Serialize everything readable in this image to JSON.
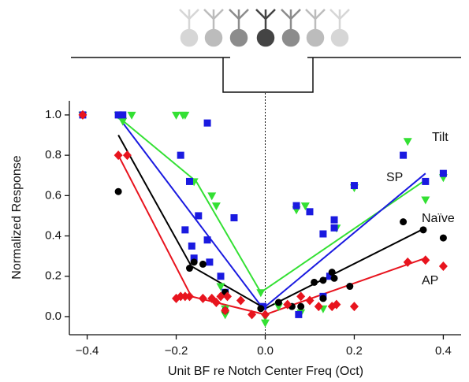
{
  "chart_data": {
    "type": "scatter",
    "xlabel": "Unit BF re Notch Center Freq (Oct)",
    "ylabel": "Normalized Response",
    "xlim": [
      -0.44,
      0.44
    ],
    "ylim": [
      -0.09,
      1.07
    ],
    "xticks": [
      {
        "value": -0.4,
        "label": "−0.4"
      },
      {
        "value": -0.2,
        "label": "−0.2"
      },
      {
        "value": 0,
        "label": "0.0"
      },
      {
        "value": 0.2,
        "label": "0.2"
      },
      {
        "value": 0.4,
        "label": "0.4"
      }
    ],
    "yticks": [
      {
        "value": 0,
        "label": "0.0"
      },
      0.2,
      0.4,
      0.6,
      0.8,
      {
        "value": 1,
        "label": "1.0"
      }
    ],
    "series": [
      {
        "name": "Tilt",
        "color": "#33e033",
        "marker": "triangle",
        "x": [
          -0.41,
          -0.33,
          -0.3,
          -0.32,
          -0.2,
          -0.185,
          -0.18,
          -0.16,
          -0.12,
          -0.11,
          -0.1,
          -0.09,
          -0.09,
          0.0,
          0.0,
          -0.01,
          0.03,
          0.07,
          0.08,
          0.09,
          0.13,
          0.16,
          0.2,
          0.32,
          0.36,
          0.4
        ],
        "y": [
          1.0,
          1.0,
          1.0,
          0.97,
          1.0,
          1.0,
          1.0,
          0.67,
          0.6,
          0.55,
          0.15,
          0.04,
          0.01,
          -0.03,
          0.0,
          0.12,
          0.05,
          0.53,
          0.02,
          0.55,
          0.04,
          0.44,
          0.64,
          0.87,
          0.58,
          0.69
        ],
        "line_x": [
          -0.33,
          -0.155,
          -0.01,
          0.355
        ],
        "line_y": [
          0.99,
          0.67,
          0.12,
          0.67
        ]
      },
      {
        "name": "SP",
        "color": "#1a1ae0",
        "marker": "square",
        "x": [
          -0.41,
          -0.33,
          -0.32,
          -0.19,
          -0.18,
          -0.17,
          -0.165,
          -0.16,
          -0.15,
          -0.13,
          -0.125,
          -0.1,
          -0.09,
          -0.07,
          -0.13,
          -0.005,
          0.07,
          0.075,
          0.1,
          0.13,
          0.13,
          0.145,
          0.155,
          0.155,
          0.2,
          0.31,
          0.36,
          0.4
        ],
        "y": [
          1.0,
          1.0,
          1.0,
          0.8,
          0.43,
          0.67,
          0.35,
          0.29,
          0.5,
          0.38,
          0.27,
          0.2,
          0.12,
          0.49,
          0.96,
          0.05,
          0.55,
          0.01,
          0.52,
          0.41,
          0.1,
          0.2,
          0.48,
          0.44,
          0.65,
          0.8,
          0.67,
          0.71
        ],
        "line_x": [
          -0.33,
          -0.005,
          0.36
        ],
        "line_y": [
          0.99,
          0.04,
          0.71
        ]
      },
      {
        "name": "Naïve",
        "color": "#000000",
        "marker": "circle",
        "x": [
          -0.33,
          -0.17,
          -0.16,
          -0.14,
          -0.09,
          -0.09,
          -0.01,
          0.03,
          0.06,
          0.08,
          0.11,
          0.13,
          0.13,
          0.15,
          0.155,
          0.19,
          0.31,
          0.355,
          0.4
        ],
        "y": [
          0.62,
          0.24,
          0.27,
          0.26,
          0.12,
          0.03,
          0.04,
          0.07,
          0.05,
          0.05,
          0.17,
          0.18,
          0.09,
          0.22,
          0.19,
          0.15,
          0.47,
          0.43,
          0.39
        ],
        "line_x": [
          -0.33,
          -0.166,
          0.0,
          0.36
        ],
        "line_y": [
          0.9,
          0.25,
          0.04,
          0.44
        ]
      },
      {
        "name": "AP",
        "color": "#e8141e",
        "marker": "diamond",
        "x": [
          -0.41,
          -0.33,
          -0.31,
          -0.2,
          -0.19,
          -0.18,
          -0.17,
          -0.14,
          -0.12,
          -0.11,
          -0.1,
          -0.085,
          -0.055,
          -0.09,
          -0.03,
          0.0,
          0.05,
          0.08,
          0.1,
          0.12,
          0.15,
          0.16,
          0.2,
          0.32,
          0.36,
          0.4
        ],
        "y": [
          1.0,
          0.8,
          0.8,
          0.09,
          0.1,
          0.1,
          0.1,
          0.09,
          0.09,
          0.07,
          0.1,
          0.1,
          0.08,
          0.03,
          0.01,
          0.01,
          0.06,
          0.1,
          0.08,
          0.05,
          0.05,
          0.06,
          0.05,
          0.27,
          0.28,
          0.25
        ],
        "line_x": [
          -0.33,
          -0.166,
          0.0,
          0.36
        ],
        "line_y": [
          0.8,
          0.1,
          0.01,
          0.29
        ]
      }
    ]
  }
}
